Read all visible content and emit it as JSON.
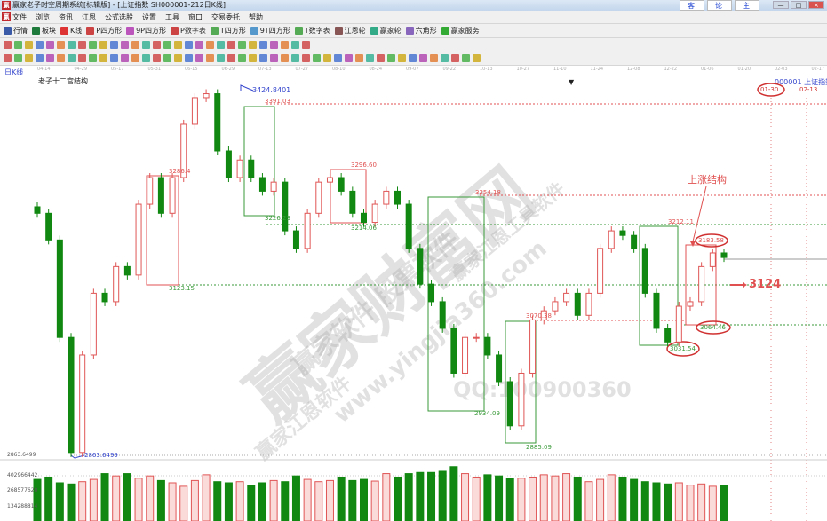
{
  "window": {
    "title": "赢家老子时空周期系统[标辑版] - [上证指数 SH000001-212日K线]",
    "links": [
      "客服",
      "论坛",
      "主页"
    ],
    "controls": [
      "—",
      "□",
      "×"
    ],
    "mdi_controls": [
      "_",
      "▫",
      "×"
    ]
  },
  "menu": [
    "文件",
    "浏览",
    "资讯",
    "江恩",
    "公式选股",
    "设置",
    "工具",
    "窗口",
    "交易委托",
    "帮助"
  ],
  "toolbar1": [
    {
      "label": "行情",
      "icon": "quote-icon",
      "color": "#3a5aa8"
    },
    {
      "label": "板块",
      "icon": "sector-icon",
      "color": "#1e7a3a"
    },
    {
      "label": "K线",
      "icon": "kline-icon",
      "color": "#d33"
    },
    {
      "label": "P四方形",
      "icon": "p-square-icon",
      "color": "#c44"
    },
    {
      "label": "9P四方形",
      "icon": "9p-square-icon",
      "color": "#b5b"
    },
    {
      "label": "P数字表",
      "icon": "p-table-icon",
      "color": "#c44"
    },
    {
      "label": "T四方形",
      "icon": "t-square-icon",
      "color": "#5a5"
    },
    {
      "label": "9T四方形",
      "icon": "9t-square-icon",
      "color": "#59c"
    },
    {
      "label": "T数字表",
      "icon": "t-table-icon",
      "color": "#5a5"
    },
    {
      "label": "江恩轮",
      "icon": "gann-wheel-icon",
      "color": "#855"
    },
    {
      "label": "赢家轮",
      "icon": "winner-wheel-icon",
      "color": "#3a8"
    },
    {
      "label": "六角形",
      "icon": "hexagon-icon",
      "color": "#86b"
    },
    {
      "label": "赢家服务",
      "icon": "dollar-icon",
      "color": "#3a3"
    }
  ],
  "toolbar2_icons": [
    "period-icon",
    "calendar-icon",
    "info-icon",
    "line-up-icon",
    "line-down-icon",
    "zero-icon",
    "formula-icon",
    "flag-icon",
    "first-icon",
    "last-icon",
    "prev-icon",
    "next-icon",
    "zoom-in-icon",
    "zoom-out-icon",
    "move-left-icon",
    "move-right-icon",
    "move-up-icon",
    "move-down-icon",
    "hand-icon",
    "crosshair-icon",
    "indicator-icon",
    "gift-icon",
    "compare-icon",
    "calc-icon",
    "save-icon",
    "layout-icon",
    "disk-icon",
    "print-icon",
    "export-icon"
  ],
  "toolbar3_icons": [
    "pen-icon",
    "hline-icon",
    "fib-icon",
    "fib2-icon",
    "tline-icon",
    "arc-icon",
    "paint-icon",
    "ellipse-icon",
    "grid-icon",
    "channel-icon",
    "angle-icon",
    "circle-icon",
    "star-icon",
    "cross-icon",
    "fan-icon",
    "gann-fan-icon",
    "gann-fan2-icon",
    "box-icon",
    "period-line-icon",
    "rect-icon",
    "ray-icon",
    "cycle-icon",
    "cycle2-icon",
    "pencil-icon",
    "wave-icon",
    "speed-icon",
    "speed2-icon",
    "bars-icon",
    "ruler-icon",
    "percent-icon",
    "time-icon",
    "target-icon",
    "gann-box-icon",
    "arrow-icon",
    "gann-grid-icon",
    "harmonic-icon",
    "cycle3-icon",
    "cycle4-icon",
    "cycle5-icon",
    "cycle6-icon",
    "cycle7-icon",
    "table-icon",
    "erase-icon",
    "color-icon",
    "link-icon"
  ],
  "chart": {
    "period_label": "日K线",
    "structure_label": "老子十二宫结构",
    "symbol": "000001 上证指数",
    "date_marks": [
      "01-30",
      "02-13"
    ],
    "dates": [
      "04-14",
      "04-29",
      "05-17",
      "05-31",
      "06-15",
      "06-29",
      "07-13",
      "07-27",
      "08-10",
      "08-24",
      "09-07",
      "09-22",
      "10-13",
      "10-27",
      "11-10",
      "11-24",
      "12-08",
      "12-22",
      "01-06",
      "01-20",
      "02-03",
      "02-17"
    ],
    "annotations": {
      "high": "3424.8401",
      "low": "2863.6499",
      "low_axis": "2863.6499",
      "l3391": "3391.03",
      "l3286": "3286.4",
      "l3226": "3226.23",
      "l3296": "3296.60",
      "l3214": "3214.06",
      "l3254": "3254.18",
      "l3123": "3123.15",
      "l2934": "2934.09",
      "l3070": "3070.38",
      "l2885": "2885.09",
      "l3212": "3212.11",
      "l3183": "3183.58",
      "l3064": "3064.46",
      "l3031": "3031.54",
      "rise_structure": "上涨结构",
      "target": "3124"
    },
    "volume_axis": [
      "402966442",
      "268577628",
      "134288814"
    ],
    "colors": {
      "up": "#e05555",
      "down": "#118811",
      "annot_red": "#e05050",
      "annot_green": "#3a9a3a",
      "blue": "#3344cc"
    }
  },
  "watermark": [
    "赢家财富网",
    "赢家软件 股票软件",
    "www.yingjia360.com",
    "赢家江恩软件",
    "赢家江恩工具软件",
    "QQ:100900360"
  ],
  "chart_data": {
    "type": "candlestick",
    "price_range": [
      2863.65,
      3424.84
    ],
    "closes": [
      3236,
      3195,
      3045,
      2868,
      3018,
      3113,
      3100,
      3154,
      3141,
      3250,
      3291,
      3236,
      3291,
      3373,
      3414,
      3420,
      3332,
      3291,
      3318,
      3291,
      3270,
      3284,
      3209,
      3182,
      3236,
      3284,
      3291,
      3270,
      3236,
      3222,
      3250,
      3270,
      3250,
      3182,
      3127,
      3100,
      3059,
      2990,
      3045,
      3045,
      3018,
      2977,
      2909,
      2990,
      3072,
      3086,
      3100,
      3113,
      3079,
      3113,
      3182,
      3209,
      3202,
      3182,
      3113,
      3059,
      3038,
      3093,
      3100,
      3154,
      3175,
      3168
    ],
    "volumes": [
      360,
      380,
      330,
      320,
      340,
      360,
      410,
      390,
      410,
      370,
      390,
      350,
      330,
      300,
      350,
      400,
      340,
      330,
      340,
      310,
      330,
      350,
      340,
      390,
      360,
      340,
      350,
      380,
      350,
      360,
      345,
      410,
      380,
      410,
      420,
      420,
      430,
      470,
      410,
      380,
      400,
      390,
      370,
      370,
      380,
      400,
      390,
      410,
      380,
      340,
      360,
      400,
      380,
      360,
      340,
      330,
      320,
      330,
      310,
      320,
      300,
      310
    ]
  }
}
